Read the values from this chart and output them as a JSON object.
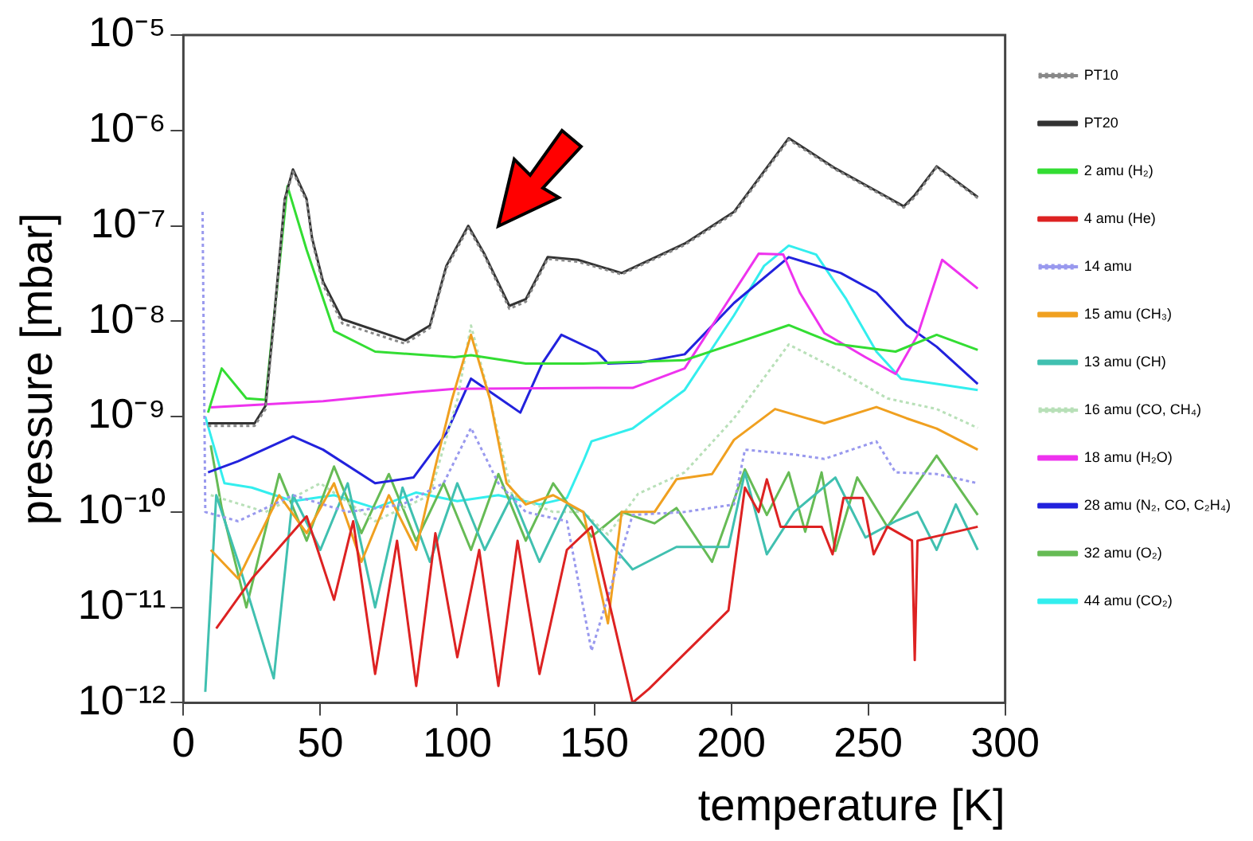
{
  "chart_data": {
    "type": "line",
    "xlabel": "temperature [K]",
    "ylabel": "pressure [mbar]",
    "xlim": [
      0,
      300
    ],
    "xticks": [
      0,
      50,
      100,
      150,
      200,
      250,
      300
    ],
    "ylim": [
      1e-12,
      1e-05
    ],
    "yticks": [
      {
        "value": 1e-12,
        "label": "10⁻¹²"
      },
      {
        "value": 1e-11,
        "label": "10⁻¹¹"
      },
      {
        "value": 1e-10,
        "label": "10⁻¹⁰"
      },
      {
        "value": 1e-09,
        "label": "10⁻⁹"
      },
      {
        "value": 1e-08,
        "label": "10⁻⁸"
      },
      {
        "value": 1e-07,
        "label": "10⁻⁷"
      },
      {
        "value": 1e-06,
        "label": "10⁻⁶"
      },
      {
        "value": 1e-05,
        "label": "10⁻⁵"
      }
    ],
    "log": "y",
    "grid": false,
    "legend": "right",
    "marker": "none",
    "series": [
      {
        "name": "PT10",
        "color": "#888888",
        "line_style": "dotted",
        "x": [
          9,
          26,
          30,
          33,
          37,
          40,
          45,
          47,
          51,
          58,
          81,
          90,
          96,
          104,
          110,
          119,
          125,
          133,
          144,
          160,
          183,
          201,
          221,
          238,
          257,
          263,
          267,
          275,
          290
        ],
        "values": [
          8e-10,
          8e-10,
          1.2e-09,
          9e-09,
          1.8e-07,
          3.7e-07,
          1.8e-07,
          7e-08,
          2.4e-08,
          9.5e-09,
          5.8e-09,
          8.5e-09,
          3.6e-08,
          9.5e-08,
          4.8e-08,
          1.35e-08,
          1.6e-08,
          4.5e-08,
          4.2e-08,
          3.1e-08,
          6.3e-08,
          1.35e-07,
          8e-07,
          3.9e-07,
          1.95e-07,
          1.55e-07,
          2e-07,
          4.1e-07,
          1.95e-07
        ]
      },
      {
        "name": "PT20",
        "color": "#333333",
        "line_style": "solid",
        "x": [
          9,
          26,
          30,
          33,
          37,
          40,
          45,
          47,
          51,
          58,
          81,
          90,
          96,
          104,
          110,
          119,
          125,
          133,
          144,
          160,
          183,
          201,
          221,
          238,
          257,
          263,
          267,
          275,
          290
        ],
        "values": [
          8.5e-10,
          8.5e-10,
          1.3e-09,
          1e-08,
          1.9e-07,
          3.9e-07,
          1.9e-07,
          7.4e-08,
          2.6e-08,
          1.05e-08,
          6.3e-09,
          9e-09,
          3.8e-08,
          1e-07,
          5e-08,
          1.45e-08,
          1.7e-08,
          4.7e-08,
          4.4e-08,
          3.2e-08,
          6.5e-08,
          1.4e-07,
          8.3e-07,
          4e-07,
          2e-07,
          1.6e-07,
          2.1e-07,
          4.2e-07,
          2e-07
        ]
      },
      {
        "name": "2 amu (H₂)",
        "color": "#33dd33",
        "line_style": "solid",
        "x": [
          9,
          14,
          23,
          30,
          38,
          45,
          55,
          70,
          99,
          105,
          125,
          146,
          183,
          201,
          221,
          238,
          260,
          275,
          290
        ],
        "values": [
          1.1e-09,
          3.2e-09,
          1.55e-09,
          1.5e-09,
          2.6e-07,
          5.6e-08,
          7.9e-09,
          4.8e-09,
          4.2e-09,
          4.4e-09,
          3.6e-09,
          3.6e-09,
          3.9e-09,
          5.8e-09,
          9.1e-09,
          5.8e-09,
          4.8e-09,
          7.2e-09,
          5e-09
        ]
      },
      {
        "name": "4 amu (He)",
        "color": "#dd2222",
        "line_style": "solid",
        "x": [
          12,
          25,
          45,
          55,
          62,
          70,
          78,
          85,
          92,
          100,
          108,
          115,
          122,
          130,
          140,
          149,
          164,
          170,
          199,
          205,
          210,
          213,
          218,
          233,
          237,
          241,
          248,
          252,
          257,
          266,
          267,
          268,
          290
        ],
        "values": [
          6e-12,
          2e-11,
          9e-11,
          1.2e-11,
          8e-11,
          2e-12,
          5e-11,
          1.5e-12,
          6e-11,
          3e-12,
          4e-11,
          1.5e-12,
          5e-11,
          2e-12,
          4e-11,
          7e-11,
          1e-12,
          1.4e-12,
          9.3e-12,
          1.8e-10,
          1e-10,
          2.2e-10,
          7e-11,
          7e-11,
          3.6e-11,
          1.4e-10,
          1.4e-10,
          3.6e-11,
          7e-11,
          5e-11,
          2.8e-12,
          5e-11,
          7e-11
        ]
      },
      {
        "name": "14 amu",
        "color": "#9999ee",
        "line_style": "dotted",
        "x": [
          7,
          8,
          20,
          40,
          60,
          80,
          95,
          105,
          115,
          125,
          140,
          149,
          164,
          183,
          201,
          205,
          223,
          234,
          253,
          260,
          275,
          290
        ],
        "values": [
          1.4e-07,
          1e-10,
          8e-11,
          1.5e-10,
          1e-10,
          1.2e-10,
          2e-10,
          7.6e-10,
          2e-10,
          1e-10,
          8e-11,
          3.5e-12,
          9.3e-11,
          1e-10,
          1.2e-10,
          4.5e-10,
          4e-10,
          3.6e-10,
          5.5e-10,
          2.6e-10,
          2.5e-10,
          2e-10
        ]
      },
      {
        "name": "15 amu (CH₃)",
        "color": "#f0a020",
        "line_style": "solid",
        "x": [
          10,
          20,
          35,
          45,
          55,
          65,
          75,
          85,
          92,
          98,
          105,
          112,
          118,
          125,
          135,
          146,
          155,
          160,
          172,
          180,
          193,
          201,
          216,
          234,
          253,
          264,
          275,
          290
        ],
        "values": [
          4e-11,
          2e-11,
          1.5e-10,
          6e-11,
          2e-10,
          3e-11,
          1.5e-10,
          4e-11,
          3e-10,
          1.5e-09,
          7.2e-09,
          1.5e-09,
          2e-10,
          1.2e-10,
          1.5e-10,
          1e-10,
          6.8e-12,
          1e-10,
          1e-10,
          2.2e-10,
          2.5e-10,
          5.7e-10,
          1.2e-09,
          8.5e-10,
          1.26e-09,
          9.6e-10,
          7.5e-10,
          4.5e-10
        ]
      },
      {
        "name": "13 amu (CH)",
        "color": "#40c0b0",
        "line_style": "solid",
        "x": [
          8,
          12,
          20,
          33,
          40,
          50,
          60,
          70,
          80,
          90,
          100,
          110,
          120,
          130,
          140,
          146,
          164,
          180,
          199,
          205,
          213,
          223,
          238,
          249,
          260,
          268,
          275,
          282,
          290
        ],
        "values": [
          1.3e-12,
          1.5e-10,
          3e-11,
          1.8e-12,
          1.5e-10,
          4e-11,
          2e-10,
          1e-11,
          1.8e-10,
          3e-11,
          2e-10,
          4e-11,
          1.5e-10,
          3e-11,
          1.2e-10,
          1e-10,
          2.5e-11,
          4.3e-11,
          4.3e-11,
          2.6e-10,
          3.6e-11,
          1e-10,
          2.3e-10,
          5.4e-11,
          8e-11,
          1e-10,
          4e-11,
          1.2e-10,
          4e-11
        ]
      },
      {
        "name": "16 amu (CO, CH₄)",
        "color": "#b8e0b8",
        "line_style": "dotted",
        "x": [
          10,
          30,
          50,
          70,
          90,
          100,
          105,
          112,
          120,
          135,
          146,
          155,
          166,
          183,
          201,
          221,
          238,
          257,
          275,
          290
        ],
        "values": [
          1.5e-10,
          1e-10,
          2e-10,
          8e-11,
          1.5e-10,
          1.5e-09,
          9e-09,
          1.5e-09,
          1.5e-10,
          1e-10,
          1e-10,
          5.8e-11,
          1.55e-10,
          2.6e-10,
          9.6e-10,
          5.7e-09,
          3.2e-09,
          1.55e-09,
          1.2e-09,
          7.6e-10
        ]
      },
      {
        "name": "18 amu (H₂O)",
        "color": "#ee33ee",
        "line_style": "solid",
        "x": [
          10,
          51,
          84,
          99,
          151,
          164,
          183,
          197,
          210,
          219,
          225,
          234,
          249,
          260,
          268,
          277,
          290
        ],
        "values": [
          1.25e-09,
          1.45e-09,
          1.8e-09,
          1.95e-09,
          2e-09,
          2e-09,
          3.2e-09,
          1.35e-08,
          5.1e-08,
          5e-08,
          2e-08,
          7.5e-09,
          4.2e-09,
          2.8e-09,
          7.1e-09,
          4.4e-08,
          2.2e-08
        ]
      },
      {
        "name": "28 amu (N₂, CO, C₂H₄)",
        "color": "#2222dd",
        "line_style": "solid",
        "x": [
          9,
          20,
          40,
          51,
          70,
          84,
          96,
          105,
          114,
          123,
          131,
          138,
          151,
          155,
          167,
          183,
          201,
          221,
          240,
          253,
          264,
          275,
          290
        ],
        "values": [
          2.6e-10,
          3.4e-10,
          6.2e-10,
          4.5e-10,
          2e-10,
          2.3e-10,
          6.7e-10,
          2.5e-09,
          1.66e-09,
          1.1e-09,
          3.6e-09,
          7.2e-09,
          4.8e-09,
          3.6e-09,
          3.7e-09,
          4.5e-09,
          1.55e-08,
          4.7e-08,
          3.2e-08,
          2e-08,
          9.1e-09,
          5.4e-09,
          2.2e-09
        ]
      },
      {
        "name": "32 amu (O₂)",
        "color": "#66bb55",
        "line_style": "solid",
        "x": [
          10,
          14,
          23,
          35,
          45,
          55,
          65,
          75,
          85,
          95,
          105,
          115,
          125,
          135,
          149,
          160,
          172,
          180,
          193,
          205,
          213,
          221,
          227,
          233,
          238,
          246,
          257,
          275,
          290
        ],
        "values": [
          5e-10,
          1.1e-10,
          1e-11,
          2.5e-10,
          5e-11,
          3e-10,
          6e-11,
          2.5e-10,
          5e-11,
          2e-10,
          4e-11,
          2.5e-10,
          5e-11,
          2e-10,
          5.5e-11,
          1e-10,
          7.6e-11,
          1.1e-10,
          3e-11,
          2.8e-10,
          9.3e-11,
          2.6e-10,
          6.2e-11,
          2.6e-10,
          3.9e-11,
          2.3e-10,
          7e-11,
          3.9e-10,
          9.3e-11
        ]
      },
      {
        "name": "44 amu (CO₂)",
        "color": "#33eeee",
        "line_style": "solid",
        "x": [
          8,
          15,
          25,
          40,
          55,
          70,
          85,
          100,
          115,
          130,
          140,
          146,
          149,
          164,
          183,
          201,
          212,
          221,
          231,
          242,
          253,
          262,
          275,
          290
        ],
        "values": [
          1e-09,
          2e-10,
          1.8e-10,
          1.3e-10,
          1.5e-10,
          1.1e-10,
          1.6e-10,
          1.3e-10,
          1.5e-10,
          1.2e-10,
          1.4e-10,
          3.4e-10,
          5.5e-10,
          7.5e-10,
          1.9e-09,
          1.15e-08,
          3.8e-08,
          6.2e-08,
          5e-08,
          1.7e-08,
          4.8e-09,
          2.5e-09,
          2.2e-09,
          1.9e-09
        ]
      }
    ]
  }
}
